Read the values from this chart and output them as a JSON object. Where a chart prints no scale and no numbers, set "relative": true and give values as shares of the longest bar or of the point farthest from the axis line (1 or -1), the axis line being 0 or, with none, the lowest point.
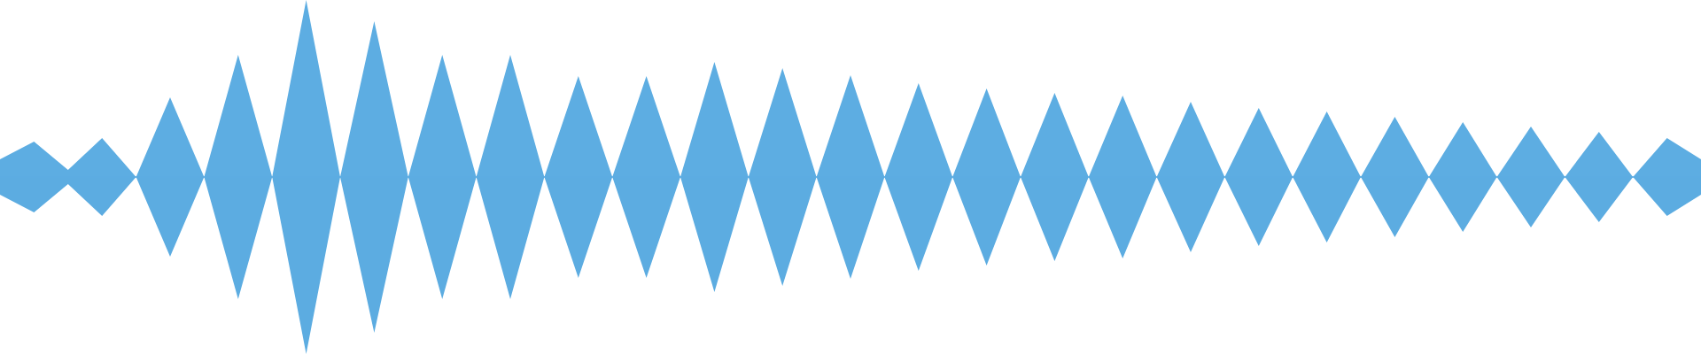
{
  "chart_data": {
    "type": "area",
    "relative": true,
    "categories": [
      null,
      null,
      null,
      null,
      null,
      null,
      null,
      null,
      null,
      null,
      null,
      null,
      null,
      null,
      null,
      null,
      null,
      null,
      null,
      null,
      null,
      null,
      null,
      null,
      null,
      null,
      null,
      null,
      null,
      null,
      null,
      null,
      null,
      null,
      null,
      null,
      null,
      null,
      null,
      null,
      null,
      null,
      null,
      null,
      null,
      null,
      null,
      null,
      null,
      null,
      null
    ],
    "series": [
      {
        "color": "#5dade2",
        "values": [
          0.1,
          0.2,
          0.04,
          0.22,
          0,
          0.45,
          0,
          0.69,
          0,
          1,
          0,
          0.88,
          0,
          0.69,
          0,
          0.69,
          0,
          0.57,
          0,
          0.57,
          0,
          0.65,
          0,
          0.615,
          0,
          0.575,
          0,
          0.53,
          0,
          0.5,
          0,
          0.475,
          0,
          0.46,
          0,
          0.425,
          0,
          0.39,
          0,
          0.37,
          0,
          0.34,
          0,
          0.31,
          0,
          0.285,
          0,
          0.255,
          0,
          0.22,
          0.1
        ]
      },
      {
        "color": "#5cace1",
        "values": [
          -0.1,
          -0.2,
          -0.04,
          -0.22,
          0,
          -0.45,
          0,
          -0.69,
          0,
          -1,
          0,
          -0.88,
          0,
          -0.69,
          0,
          -0.69,
          0,
          -0.57,
          0,
          -0.57,
          0,
          -0.65,
          0,
          -0.615,
          0,
          -0.575,
          0,
          -0.53,
          0,
          -0.5,
          0,
          -0.475,
          0,
          -0.46,
          0,
          -0.425,
          0,
          -0.39,
          0,
          -0.37,
          0,
          -0.34,
          0,
          -0.31,
          0,
          -0.285,
          0,
          -0.255,
          0,
          -0.22,
          -0.1
        ]
      }
    ],
    "ref_lines": [
      {
        "axis": "y",
        "value": 0,
        "color": "#5dade2"
      }
    ]
  }
}
